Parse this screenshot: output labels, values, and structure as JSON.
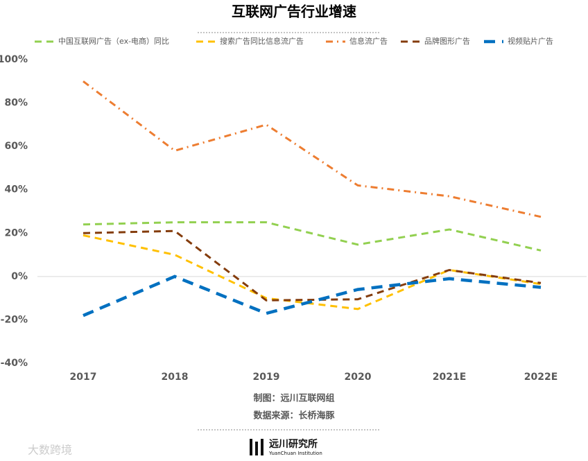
{
  "chart_data": {
    "type": "line",
    "title": "互联网广告行业增速",
    "categories": [
      "2017",
      "2018",
      "2019",
      "2020",
      "2021E",
      "2022E"
    ],
    "series": [
      {
        "name": "中国互联网广告（ex-电商）同比",
        "color": "#92d050",
        "dash": "dash",
        "values": [
          24,
          25,
          25,
          14.7,
          21.7,
          12
        ]
      },
      {
        "name": "搜索广告同比信息流广告",
        "color": "#ffc000",
        "dash": "dash",
        "values": [
          19,
          10,
          -10,
          -15,
          3,
          -3.5
        ]
      },
      {
        "name": "信息流广告",
        "color": "#ed7d31",
        "dash": "dashdot",
        "values": [
          90,
          58,
          70,
          42,
          37,
          27.5
        ]
      },
      {
        "name": "品牌图形广告",
        "color": "#843c0c",
        "dash": "dash",
        "values": [
          20,
          21,
          -11,
          -10.5,
          3,
          -3
        ]
      },
      {
        "name": "视频贴片广告",
        "color": "#0070c0",
        "dash": "longdash",
        "values": [
          -18,
          0,
          -17,
          -6,
          -1,
          -5
        ]
      }
    ],
    "ylim": [
      -40,
      100
    ],
    "yticks": [
      {
        "value": -40,
        "label": "-40%"
      },
      {
        "value": -20,
        "label": "-20%"
      },
      {
        "value": 0,
        "label": "0%"
      },
      {
        "value": 20,
        "label": "20%"
      },
      {
        "value": 40,
        "label": "40%"
      },
      {
        "value": 60,
        "label": "60%"
      },
      {
        "value": 80,
        "label": "80%"
      },
      {
        "value": 100,
        "label": "100%"
      }
    ],
    "grid": false,
    "zero_line": true,
    "notes": [
      "制图：远川互联网组",
      "数据来源：长桥海豚"
    ],
    "logo": {
      "name": "远川研究所",
      "subtitle": "YuanChuan Institution"
    },
    "watermark": "大数跨境"
  }
}
